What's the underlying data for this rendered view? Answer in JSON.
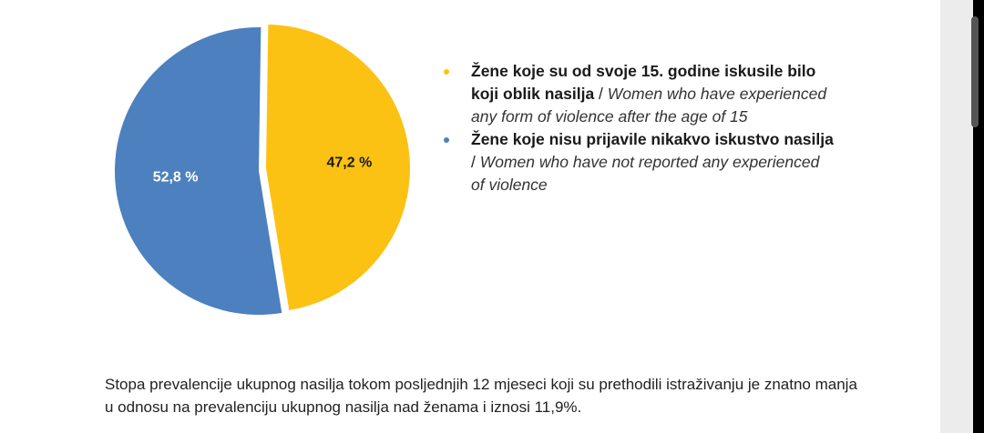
{
  "chart_data": {
    "type": "pie",
    "slices": [
      {
        "value": 47.2,
        "label": "47,2 %",
        "color": "#FCC213",
        "label_color": "#1a1a1a",
        "legend_bold": "Žene koje su od svoje 15. godine iskusile bilo koji oblik nasilja",
        "legend_sep": " / ",
        "legend_italic": "Women who have experienced any form of violence after the age of 15"
      },
      {
        "value": 52.8,
        "label": "52,8 %",
        "color": "#4C80BF",
        "label_color": "#ffffff",
        "legend_bold": "Žene koje nisu prijavile nikakvo iskustvo nasilja",
        "legend_sep": " / ",
        "legend_italic": "Women who have not reported any experienced of violence"
      }
    ],
    "legend_position": "right"
  },
  "paragraph": "Stopa prevalencije ukupnog nasilja tokom posljednjih 12 mjeseci koji su prethodili istraživanju je znatno manja u odnosu na prevalenciju ukupnog nasilja nad ženama i iznosi 11,9%."
}
